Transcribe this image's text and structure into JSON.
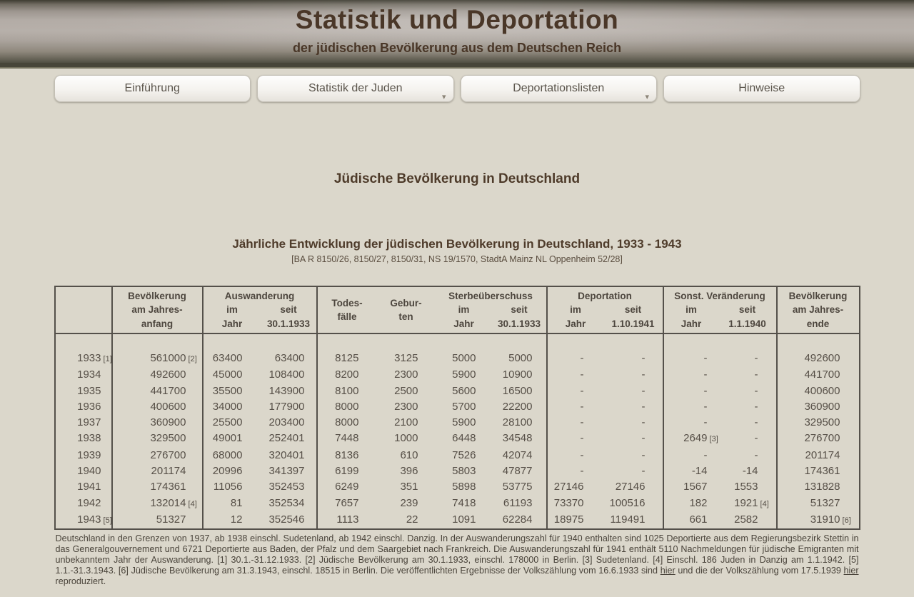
{
  "theme": {
    "page_background": "#dbd7cb",
    "header_text_color": "#4a3728",
    "table_border_color": "#54504a"
  },
  "masthead": {
    "title": "Statistik und Deportation",
    "subtitle": "der jüdischen Bevölkerung aus dem Deutschen Reich"
  },
  "nav": {
    "items": [
      {
        "label": "Einführung",
        "has_dropdown": false
      },
      {
        "label": "Statistik der Juden",
        "has_dropdown": true
      },
      {
        "label": "Deportationslisten",
        "has_dropdown": true
      },
      {
        "label": "Hinweise",
        "has_dropdown": false
      }
    ]
  },
  "content": {
    "section_title": "Jüdische Bevölkerung in Deutschland",
    "table_title": "Jährliche Entwicklung der jüdischen Bevölkerung in Deutschland, 1933 - 1943",
    "table_source": "[BA R 8150/26, 8150/27, 8150/31, NS 19/1570, StadtA Mainz NL Oppenheim 52/28]"
  },
  "table": {
    "header": {
      "bev_anfang": [
        "Bevölkerung",
        "am Jahres-",
        "anfang"
      ],
      "auswanderung": {
        "title": "Auswanderung",
        "c1": [
          "im",
          "Jahr"
        ],
        "c2": [
          "seit",
          "30.1.1933"
        ]
      },
      "todesfaelle": [
        "Todes-",
        "fälle"
      ],
      "geburten": [
        "Gebur-",
        "ten"
      ],
      "sterbe": {
        "title": "Sterbeüberschuss",
        "c1": [
          "im",
          "Jahr"
        ],
        "c2": [
          "seit",
          "30.1.1933"
        ]
      },
      "deportation": {
        "title": "Deportation",
        "c1": [
          "im",
          "Jahr"
        ],
        "c2": [
          "seit",
          "1.10.1941"
        ]
      },
      "sonst": {
        "title": "Sonst. Veränderung",
        "c1": [
          "im",
          "Jahr"
        ],
        "c2": [
          "seit",
          "1.1.1940"
        ]
      },
      "bev_ende": [
        "Bevölkerung",
        "am Jahres-",
        "ende"
      ]
    },
    "rows": [
      {
        "cells": [
          "1933",
          "561000",
          "63400",
          "63400",
          "8125",
          "3125",
          "5000",
          "5000",
          "-",
          "-",
          "-",
          "-",
          "492600"
        ],
        "markers": {
          "0": "[1]",
          "1": "[2]"
        }
      },
      {
        "cells": [
          "1934",
          "492600",
          "45000",
          "108400",
          "8200",
          "2300",
          "5900",
          "10900",
          "-",
          "-",
          "-",
          "-",
          "441700"
        ]
      },
      {
        "cells": [
          "1935",
          "441700",
          "35500",
          "143900",
          "8100",
          "2500",
          "5600",
          "16500",
          "-",
          "-",
          "-",
          "-",
          "400600"
        ]
      },
      {
        "cells": [
          "1936",
          "400600",
          "34000",
          "177900",
          "8000",
          "2300",
          "5700",
          "22200",
          "-",
          "-",
          "-",
          "-",
          "360900"
        ]
      },
      {
        "cells": [
          "1937",
          "360900",
          "25500",
          "203400",
          "8000",
          "2100",
          "5900",
          "28100",
          "-",
          "-",
          "-",
          "-",
          "329500"
        ]
      },
      {
        "cells": [
          "1938",
          "329500",
          "49001",
          "252401",
          "7448",
          "1000",
          "6448",
          "34548",
          "-",
          "-",
          "2649",
          "-",
          "276700"
        ],
        "markers": {
          "10": "[3]"
        }
      },
      {
        "cells": [
          "1939",
          "276700",
          "68000",
          "320401",
          "8136",
          "610",
          "7526",
          "42074",
          "-",
          "-",
          "-",
          "-",
          "201174"
        ]
      },
      {
        "cells": [
          "1940",
          "201174",
          "20996",
          "341397",
          "6199",
          "396",
          "5803",
          "47877",
          "-",
          "-",
          "-14",
          "-14",
          "174361"
        ]
      },
      {
        "cells": [
          "1941",
          "174361",
          "11056",
          "352453",
          "6249",
          "351",
          "5898",
          "53775",
          "27146",
          "27146",
          "1567",
          "1553",
          "131828"
        ]
      },
      {
        "cells": [
          "1942",
          "132014",
          "81",
          "352534",
          "7657",
          "239",
          "7418",
          "61193",
          "73370",
          "100516",
          "182",
          "1921",
          "51327"
        ],
        "markers": {
          "1": "[4]",
          "11": "[4]"
        }
      },
      {
        "cells": [
          "1943",
          "51327",
          "12",
          "352546",
          "1113",
          "22",
          "1091",
          "62284",
          "18975",
          "119491",
          "661",
          "2582",
          "31910"
        ],
        "markers": {
          "0": "[5]",
          "12": "[6]"
        }
      }
    ]
  },
  "footnote": {
    "segments": [
      {
        "text": "Deutschland in den Grenzen von 1937, ab 1938 einschl. Sudetenland, ab 1942 einschl. Danzig. In der Auswanderungszahl für 1940 enthalten sind 1025 Deportierte aus dem Regierungsbezirk Stettin in das Generalgouvernement und 6721 Deportierte aus Baden, der Pfalz und dem Saargebiet nach Frankreich. Die Auswanderungszahl für 1941 enthält 5110 Nachmeldungen für jüdische Emigranten mit unbekanntem Jahr der Auswanderung. [1] 30.1.-31.12.1933. [2] Jüdische Bevölkerung am 30.1.1933, einschl. 178000 in Berlin. [3] Sudetenland. [4] Einschl. 186 Juden in Danzig am 1.1.1942. [5] 1.1.-31.3.1943. [6] Jüdische Bevölkerung am 31.3.1943, einschl. 18515 in Berlin. Die veröffentlichten Ergebnisse der Volkszählung vom 16.6.1933 sind ",
        "link": false
      },
      {
        "text": "hier",
        "link": true
      },
      {
        "text": " und die der Volkszählung vom 17.5.1939 ",
        "link": false
      },
      {
        "text": "hier",
        "link": true
      },
      {
        "text": " reproduziert.",
        "link": false
      }
    ]
  }
}
